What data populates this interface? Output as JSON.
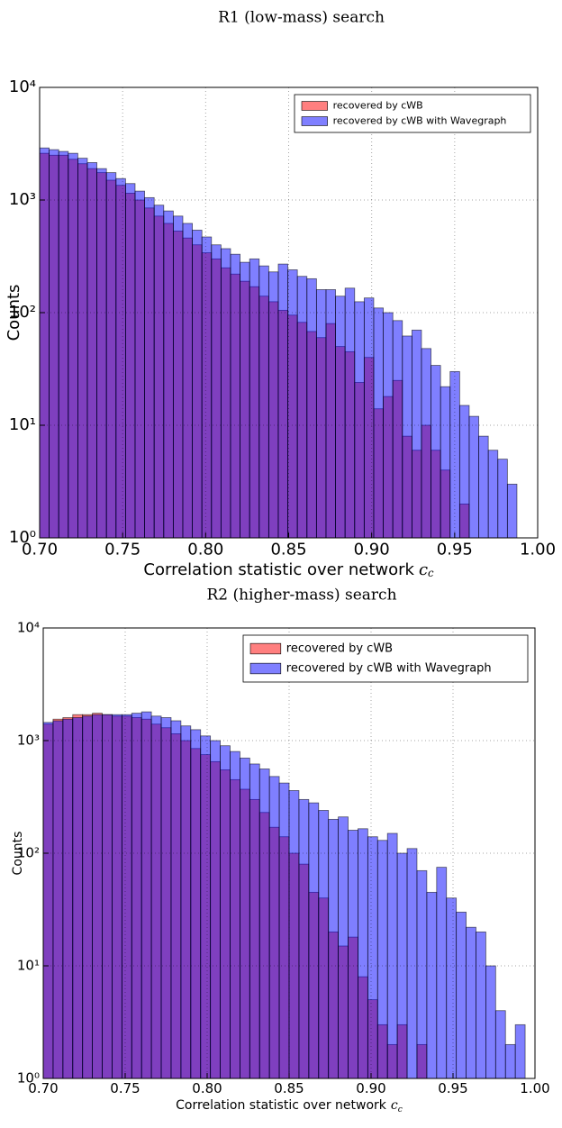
{
  "chart_data": [
    {
      "type": "histogram",
      "title": "R1 (low-mass) search",
      "xlabel": "Correlation statistic over network",
      "xlabel_symbol": "c_c",
      "ylabel": "Counts",
      "bins": [
        0.7,
        0.70575,
        0.7115,
        0.71725,
        0.723,
        0.72875,
        0.7345,
        0.74025,
        0.746,
        0.75175,
        0.7575,
        0.76325,
        0.769,
        0.77475,
        0.7805,
        0.78625,
        0.792,
        0.79775,
        0.8035,
        0.80925,
        0.815,
        0.82075,
        0.8265,
        0.83225,
        0.838,
        0.84375,
        0.8495,
        0.85525,
        0.861,
        0.86675,
        0.8725,
        0.87825,
        0.884,
        0.88975,
        0.8955,
        0.90125,
        0.907,
        0.91275,
        0.9185,
        0.92425,
        0.93,
        0.93575,
        0.9415,
        0.94725,
        0.953,
        0.95875,
        0.9645,
        0.97025,
        0.976,
        0.98175,
        0.9875
      ],
      "series": [
        {
          "name": "recovered by cWB",
          "color": "#ff0000",
          "values": [
            2600,
            2500,
            2500,
            2300,
            2100,
            1900,
            1750,
            1500,
            1350,
            1150,
            1000,
            850,
            720,
            620,
            530,
            460,
            400,
            340,
            300,
            250,
            220,
            190,
            170,
            140,
            125,
            105,
            95,
            82,
            68,
            60,
            80,
            50,
            45,
            24,
            40,
            14,
            18,
            25,
            8,
            6,
            10,
            6,
            4,
            0,
            2,
            0,
            0,
            0,
            0,
            0
          ]
        },
        {
          "name": "recovered by cWB with Wavegraph",
          "color": "#0000ff",
          "values": [
            2900,
            2800,
            2700,
            2600,
            2350,
            2150,
            1900,
            1750,
            1550,
            1400,
            1200,
            1050,
            900,
            800,
            720,
            620,
            540,
            470,
            400,
            370,
            330,
            280,
            300,
            260,
            230,
            270,
            240,
            210,
            200,
            160,
            160,
            140,
            165,
            125,
            135,
            110,
            100,
            85,
            62,
            70,
            48,
            34,
            22,
            30,
            15,
            12,
            8,
            6,
            5,
            3
          ]
        }
      ],
      "xlim": [
        0.7,
        1.0
      ],
      "xticks": [
        {
          "value": 0.7,
          "label": "0.70"
        },
        0.75,
        {
          "value": 0.8,
          "label": "0.80"
        },
        0.85,
        {
          "value": 0.9,
          "label": "0.90"
        },
        0.95,
        {
          "value": 1.0,
          "label": "1.00"
        }
      ],
      "ylim": [
        1,
        10000
      ],
      "yticks": [
        {
          "value": 1,
          "label": "10⁰"
        },
        {
          "value": 10,
          "label": "10¹"
        },
        {
          "value": 100,
          "label": "10²"
        },
        {
          "value": 1000,
          "label": "10³"
        },
        {
          "value": 10000,
          "label": "10⁴"
        }
      ],
      "log_y": true,
      "grid": true,
      "legend": "upper right"
    },
    {
      "type": "histogram",
      "title": "R2 (higher-mass) search",
      "xlabel": "Correlation statistic over network",
      "xlabel_symbol": "c_c",
      "ylabel": "Counts",
      "bins": [
        0.7,
        0.706,
        0.712,
        0.718,
        0.724,
        0.73,
        0.736,
        0.742,
        0.748,
        0.754,
        0.76,
        0.766,
        0.772,
        0.778,
        0.784,
        0.79,
        0.796,
        0.802,
        0.808,
        0.814,
        0.82,
        0.826,
        0.832,
        0.838,
        0.844,
        0.85,
        0.856,
        0.862,
        0.868,
        0.874,
        0.88,
        0.886,
        0.892,
        0.898,
        0.904,
        0.91,
        0.916,
        0.922,
        0.928,
        0.934,
        0.94,
        0.946,
        0.952,
        0.958,
        0.964,
        0.97,
        0.976,
        0.982,
        0.988,
        0.994
      ],
      "series": [
        {
          "name": "recovered by cWB",
          "color": "#ff0000",
          "values": [
            1400,
            1550,
            1600,
            1700,
            1700,
            1750,
            1700,
            1650,
            1650,
            1600,
            1550,
            1400,
            1300,
            1150,
            1000,
            850,
            750,
            650,
            550,
            450,
            370,
            300,
            230,
            170,
            140,
            100,
            80,
            45,
            40,
            20,
            15,
            18,
            8,
            5,
            3,
            2,
            3,
            0,
            2,
            0,
            0,
            0,
            0,
            0,
            0,
            0,
            0,
            0,
            0
          ]
        },
        {
          "name": "recovered by cWB with Wavegraph",
          "color": "#0000ff",
          "values": [
            1450,
            1500,
            1550,
            1600,
            1650,
            1700,
            1700,
            1700,
            1700,
            1750,
            1800,
            1650,
            1600,
            1500,
            1350,
            1250,
            1100,
            1000,
            900,
            800,
            700,
            620,
            560,
            480,
            420,
            360,
            300,
            280,
            240,
            200,
            210,
            160,
            165,
            140,
            130,
            150,
            100,
            110,
            70,
            45,
            75,
            40,
            30,
            22,
            20,
            10,
            4,
            2,
            3
          ]
        }
      ],
      "xlim": [
        0.7,
        1.0
      ],
      "xticks": [
        {
          "value": 0.7,
          "label": "0.70"
        },
        0.75,
        {
          "value": 0.8,
          "label": "0.80"
        },
        0.85,
        {
          "value": 0.9,
          "label": "0.90"
        },
        0.95,
        {
          "value": 1.0,
          "label": "1.00"
        }
      ],
      "ylim": [
        1,
        10000
      ],
      "yticks": [
        {
          "value": 1,
          "label": "10⁰"
        },
        {
          "value": 10,
          "label": "10¹"
        },
        {
          "value": 100,
          "label": "10²"
        },
        {
          "value": 1000,
          "label": "10³"
        },
        {
          "value": 10000,
          "label": "10⁴"
        }
      ],
      "log_y": true,
      "grid": true,
      "legend": "upper right"
    }
  ]
}
